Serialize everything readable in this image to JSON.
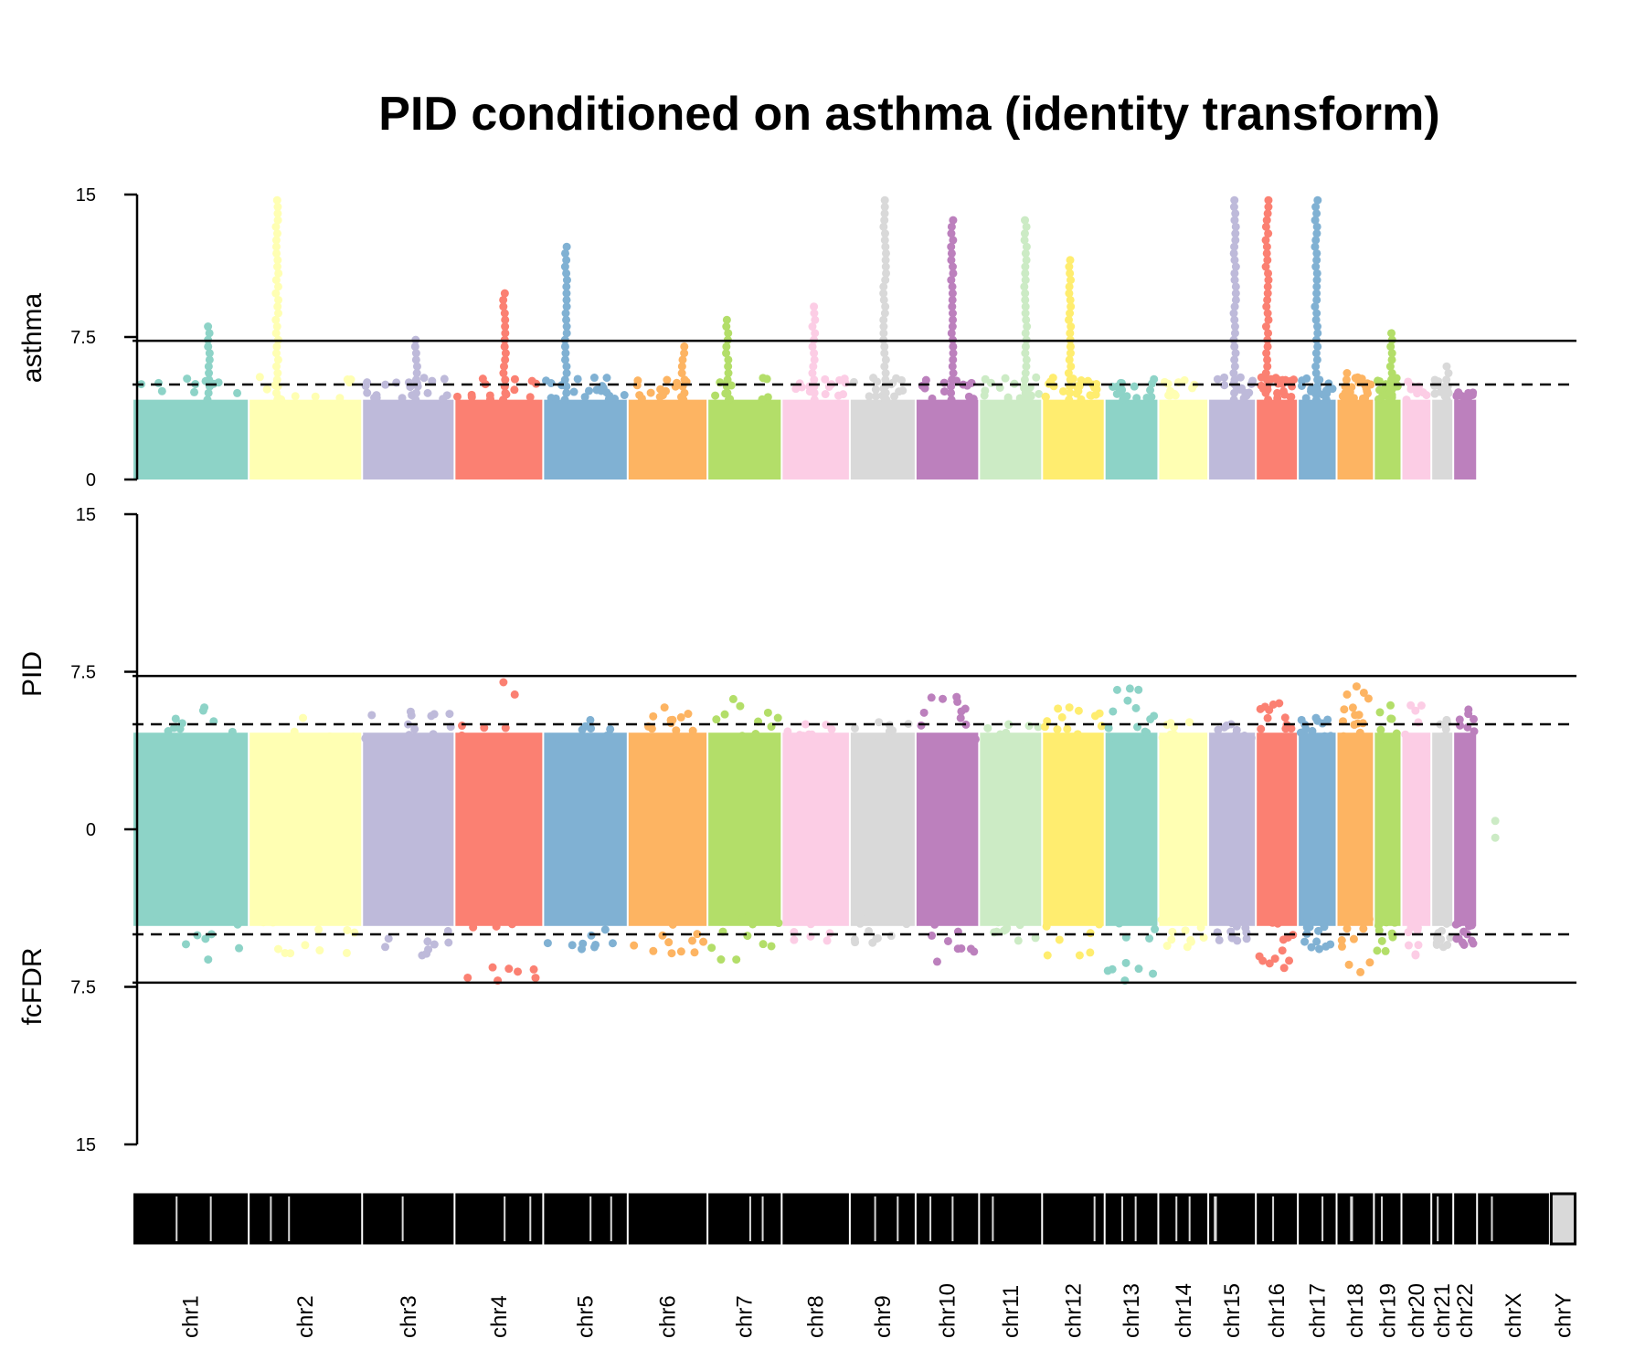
{
  "title": "PID conditioned on asthma (identity transform)",
  "colors": {
    "palette": [
      "#8DD3C7",
      "#FFFFB3",
      "#BEBADA",
      "#FB8072",
      "#80B1D3",
      "#FDB462",
      "#B3DE69",
      "#FCCDE5",
      "#D9D9D9",
      "#BC80BD",
      "#CCEBC5",
      "#FFED6F"
    ],
    "threshold_line": "#000000",
    "ideogram_band": "#000000",
    "ideogram_gap": "#d9d9d9"
  },
  "chart_data": {
    "type": "scatter",
    "subtype": "miami plot",
    "title": "PID conditioned on asthma (identity transform)",
    "panels": [
      {
        "id": "top",
        "ylabel": "asthma",
        "ylim": [
          0,
          15
        ],
        "yticks": [
          "0",
          "7.5",
          "15"
        ],
        "thresholds": [
          {
            "value": 7.3,
            "style": "solid"
          },
          {
            "value": 5.0,
            "style": "dashed"
          }
        ]
      },
      {
        "id": "bottom",
        "ylabel_upper": "PID",
        "ylabel_lower": "fcFDR",
        "ylim": [
          -15,
          15
        ],
        "yticks": [
          "15",
          "7.5",
          "0",
          "7.5",
          "15"
        ],
        "thresholds": [
          {
            "value": 7.3,
            "style": "solid"
          },
          {
            "value": 5.0,
            "style": "dashed"
          },
          {
            "value": -5.0,
            "style": "dashed"
          },
          {
            "value": -7.3,
            "style": "solid"
          }
        ]
      }
    ],
    "chromosomes": [
      "chr1",
      "chr2",
      "chr3",
      "chr4",
      "chr5",
      "chr6",
      "chr7",
      "chr8",
      "chr9",
      "chr10",
      "chr11",
      "chr12",
      "chr13",
      "chr14",
      "chr15",
      "chr16",
      "chr17",
      "chr18",
      "chr19",
      "chr20",
      "chr21",
      "chr22",
      "chrX",
      "chrY"
    ],
    "chromosome_lengths_mb": [
      249,
      243,
      198,
      190,
      181,
      171,
      159,
      146,
      141,
      136,
      135,
      134,
      115,
      107,
      102,
      90,
      83,
      80,
      59,
      64,
      47,
      51,
      156,
      57
    ],
    "top_panel_max": [
      8.2,
      15.0,
      7.6,
      9.8,
      12.3,
      7.1,
      8.6,
      9.3,
      15.0,
      13.8,
      13.9,
      11.7,
      5.3,
      5.3,
      14.9,
      15.0,
      15.0,
      5.8,
      7.8,
      5.3,
      6.0,
      4.6,
      null,
      null
    ],
    "bottom_panel_max": [
      5.8,
      5.3,
      5.6,
      7.0,
      5.2,
      5.8,
      6.2,
      5.0,
      5.1,
      6.3,
      5.0,
      5.8,
      6.7,
      5.1,
      5.0,
      6.0,
      5.3,
      6.8,
      5.9,
      5.9,
      5.2,
      5.7,
      0.4,
      null
    ],
    "bottom_panel_min": [
      -6.2,
      -5.9,
      -6.0,
      -7.2,
      -5.7,
      -5.9,
      -6.2,
      -5.3,
      -5.4,
      -6.3,
      -5.3,
      -6.0,
      -7.2,
      -5.6,
      -5.3,
      -6.6,
      -5.7,
      -6.8,
      -5.8,
      -6.0,
      -5.6,
      -5.5,
      -0.4,
      null
    ],
    "legend": "none",
    "grid": false
  }
}
